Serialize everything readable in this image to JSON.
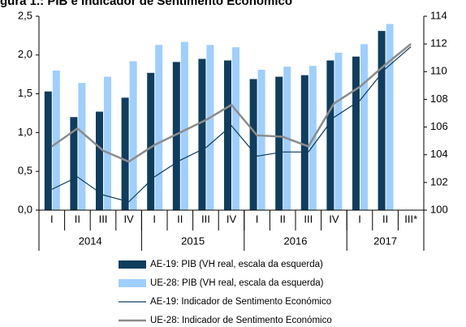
{
  "chart_data": {
    "type": "bar-line",
    "title": "gura 1.: PIB e Indicador de Sentimento Económico",
    "categories": [
      "I",
      "II",
      "III",
      "IV",
      "I",
      "II",
      "III",
      "IV",
      "I",
      "II",
      "III",
      "IV",
      "I",
      "II",
      "III*"
    ],
    "category_groups": [
      {
        "label": "2014",
        "size": 4
      },
      {
        "label": "2015",
        "size": 4
      },
      {
        "label": "2016",
        "size": 4
      },
      {
        "label": "2017",
        "size": 3
      }
    ],
    "series": [
      {
        "name": "AE-19: PIB (VH real, escala da esquerda)",
        "kind": "bar",
        "color": "#0f3d5e",
        "values": [
          1.53,
          1.2,
          1.27,
          1.45,
          1.77,
          1.91,
          1.95,
          1.93,
          1.69,
          1.72,
          1.74,
          1.93,
          1.98,
          2.31,
          null
        ]
      },
      {
        "name": "UE-28: PIB (VH real, escala da esquerda)",
        "kind": "bar",
        "color": "#9fcfff",
        "values": [
          1.8,
          1.64,
          1.72,
          1.92,
          2.13,
          2.17,
          2.13,
          2.1,
          1.81,
          1.85,
          1.86,
          2.03,
          2.14,
          2.4,
          null
        ]
      },
      {
        "name": "AE-19: Indicador de Sentimento Económico",
        "kind": "line",
        "axis": "y2",
        "color": "#0f3d5e",
        "values": [
          101.5,
          102.4,
          101.1,
          100.6,
          102.4,
          103.6,
          104.5,
          106.1,
          103.9,
          104.2,
          104.2,
          106.7,
          107.9,
          110.2,
          111.8
        ]
      },
      {
        "name": "UE-28: Indicador de Sentimento Económico",
        "kind": "line",
        "axis": "y2",
        "color": "#8c8c8c",
        "values": [
          104.6,
          105.9,
          104.3,
          103.5,
          104.7,
          105.6,
          106.5,
          107.6,
          105.4,
          105.3,
          104.6,
          107.7,
          108.9,
          110.5,
          112.0
        ]
      }
    ],
    "ylim": [
      0,
      2.5
    ],
    "yticks": [
      {
        "value": 0,
        "label": "0,0"
      },
      {
        "value": 0.5,
        "label": "0,5"
      },
      {
        "value": 1,
        "label": "1,0"
      },
      {
        "value": 1.5,
        "label": "1,5"
      },
      {
        "value": 2,
        "label": "2,0"
      },
      {
        "value": 2.5,
        "label": "2,5"
      }
    ],
    "y2lim": [
      100,
      114
    ],
    "y2ticks": [
      100,
      102,
      104,
      106,
      108,
      110,
      112,
      114
    ]
  }
}
